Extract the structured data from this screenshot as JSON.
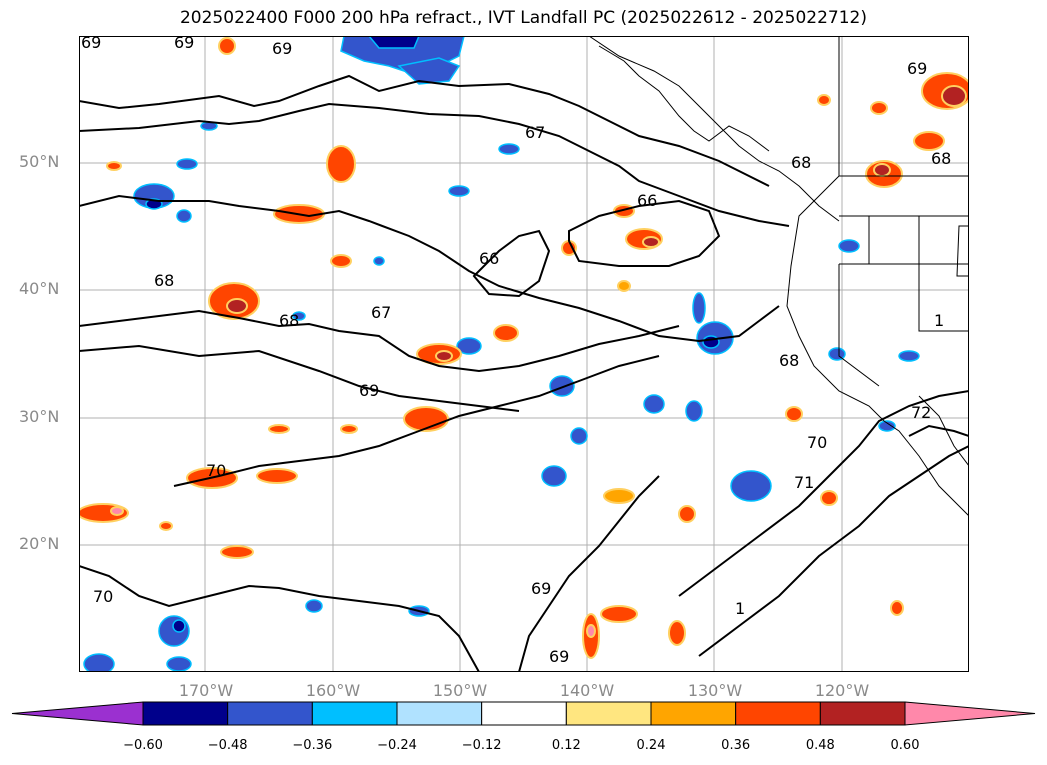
{
  "title": "2025022400 F000 200 hPa refract., IVT Landfall PC (2025022612 - 2025022712)",
  "lat_labels": [
    "50°N",
    "40°N",
    "30°N",
    "20°N"
  ],
  "lon_labels": [
    "170°W",
    "160°W",
    "150°W",
    "140°W",
    "130°W",
    "120°W"
  ],
  "contour_labels": [
    "69",
    "69",
    "69",
    "69",
    "67",
    "68",
    "68",
    "66",
    "66",
    "68",
    "67",
    "68",
    "69",
    "68",
    "70",
    "70",
    "71",
    "72",
    "70",
    "69",
    "69",
    "1",
    "1"
  ],
  "colorbar": {
    "tick_labels": [
      "−0.60",
      "−0.48",
      "−0.36",
      "−0.24",
      "−0.12",
      "0.12",
      "0.24",
      "0.36",
      "0.48",
      "0.60"
    ],
    "colors": [
      "#9b30d0",
      "#00008b",
      "#3355cc",
      "#00bfff",
      "#b0e2ff",
      "#ffffff",
      "#ffe680",
      "#ffa500",
      "#ff4500",
      "#b22222",
      "#ff88aa"
    ]
  },
  "colors": {
    "grid": "#b0b0b0",
    "contour": "#000000",
    "axis_label": "#8a8a8a"
  }
}
